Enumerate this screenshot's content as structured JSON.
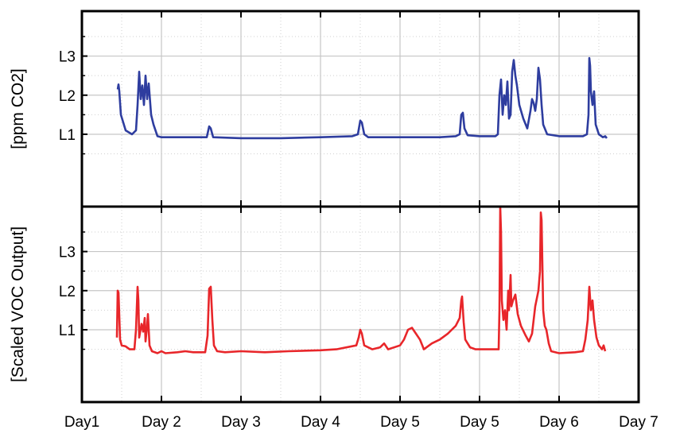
{
  "chart_data": [
    {
      "type": "line",
      "ylabel": "[ppm CO2]",
      "x_ticks": [
        "Day1",
        "Day 2",
        "Day 3",
        "Day 4",
        "Day 5",
        "Day 5",
        "Day 6",
        "Day 7"
      ],
      "y_ticks": [
        "L1",
        "L2",
        "L3"
      ],
      "xlim": [
        0,
        7
      ],
      "ylim": [
        0.53,
        1.53
      ],
      "grid": true,
      "series": [
        {
          "color": "#2e3d9f",
          "points": [
            [
              0.45,
              1.13
            ],
            [
              0.46,
              1.155
            ],
            [
              0.47,
              1.12
            ],
            [
              0.49,
              1.0
            ],
            [
              0.55,
              0.92
            ],
            [
              0.63,
              0.9
            ],
            [
              0.68,
              0.92
            ],
            [
              0.7,
              1.05
            ],
            [
              0.72,
              1.22
            ],
            [
              0.74,
              1.08
            ],
            [
              0.76,
              1.15
            ],
            [
              0.78,
              1.05
            ],
            [
              0.8,
              1.2
            ],
            [
              0.82,
              1.08
            ],
            [
              0.84,
              1.16
            ],
            [
              0.87,
              1.0
            ],
            [
              0.9,
              0.95
            ],
            [
              0.95,
              0.89
            ],
            [
              1.0,
              0.885
            ],
            [
              1.2,
              0.885
            ],
            [
              1.5,
              0.885
            ],
            [
              1.57,
              0.885
            ],
            [
              1.6,
              0.94
            ],
            [
              1.62,
              0.93
            ],
            [
              1.65,
              0.885
            ],
            [
              2.0,
              0.88
            ],
            [
              2.5,
              0.88
            ],
            [
              3.0,
              0.885
            ],
            [
              3.4,
              0.89
            ],
            [
              3.47,
              0.9
            ],
            [
              3.5,
              0.97
            ],
            [
              3.52,
              0.96
            ],
            [
              3.55,
              0.9
            ],
            [
              3.6,
              0.885
            ],
            [
              4.0,
              0.885
            ],
            [
              4.5,
              0.885
            ],
            [
              4.7,
              0.89
            ],
            [
              4.75,
              0.9
            ],
            [
              4.77,
              1.0
            ],
            [
              4.79,
              1.01
            ],
            [
              4.81,
              0.93
            ],
            [
              4.85,
              0.895
            ],
            [
              5.0,
              0.89
            ],
            [
              5.2,
              0.89
            ],
            [
              5.23,
              0.9
            ],
            [
              5.25,
              1.1
            ],
            [
              5.27,
              1.18
            ],
            [
              5.29,
              1.0
            ],
            [
              5.31,
              1.1
            ],
            [
              5.33,
              1.05
            ],
            [
              5.35,
              1.17
            ],
            [
              5.37,
              0.98
            ],
            [
              5.39,
              1.0
            ],
            [
              5.41,
              1.22
            ],
            [
              5.43,
              1.28
            ],
            [
              5.45,
              1.2
            ],
            [
              5.47,
              1.15
            ],
            [
              5.5,
              1.05
            ],
            [
              5.55,
              0.98
            ],
            [
              5.6,
              0.93
            ],
            [
              5.64,
              1.02
            ],
            [
              5.66,
              1.08
            ],
            [
              5.68,
              1.06
            ],
            [
              5.7,
              1.02
            ],
            [
              5.72,
              1.08
            ],
            [
              5.74,
              1.24
            ],
            [
              5.76,
              1.18
            ],
            [
              5.78,
              1.05
            ],
            [
              5.8,
              0.95
            ],
            [
              5.85,
              0.9
            ],
            [
              6.0,
              0.89
            ],
            [
              6.3,
              0.89
            ],
            [
              6.35,
              0.9
            ],
            [
              6.37,
              1.0
            ],
            [
              6.38,
              1.29
            ],
            [
              6.39,
              1.25
            ],
            [
              6.4,
              1.12
            ],
            [
              6.42,
              1.05
            ],
            [
              6.44,
              1.12
            ],
            [
              6.46,
              0.95
            ],
            [
              6.5,
              0.9
            ],
            [
              6.55,
              0.885
            ],
            [
              6.58,
              0.89
            ],
            [
              6.6,
              0.88
            ]
          ]
        }
      ]
    },
    {
      "type": "line",
      "ylabel": "[Scaled VOC Output]",
      "x_ticks": [
        "Day1",
        "Day 2",
        "Day 3",
        "Day 4",
        "Day 5",
        "Day 5",
        "Day 6",
        "Day 7"
      ],
      "y_ticks": [
        "L1",
        "L2",
        "L3"
      ],
      "xlim": [
        0,
        7
      ],
      "ylim": [
        0.53,
        1.53
      ],
      "grid": true,
      "series": [
        {
          "color": "#e8262a",
          "points": [
            [
              0.44,
              0.86
            ],
            [
              0.45,
              1.1
            ],
            [
              0.46,
              1.09
            ],
            [
              0.48,
              0.85
            ],
            [
              0.5,
              0.82
            ],
            [
              0.55,
              0.815
            ],
            [
              0.6,
              0.8
            ],
            [
              0.66,
              0.8
            ],
            [
              0.68,
              0.9
            ],
            [
              0.7,
              1.12
            ],
            [
              0.71,
              1.05
            ],
            [
              0.72,
              0.86
            ],
            [
              0.75,
              0.93
            ],
            [
              0.77,
              0.89
            ],
            [
              0.79,
              0.96
            ],
            [
              0.8,
              0.84
            ],
            [
              0.82,
              0.92
            ],
            [
              0.83,
              0.98
            ],
            [
              0.85,
              0.82
            ],
            [
              0.88,
              0.79
            ],
            [
              0.95,
              0.78
            ],
            [
              1.0,
              0.79
            ],
            [
              1.05,
              0.78
            ],
            [
              1.2,
              0.785
            ],
            [
              1.3,
              0.79
            ],
            [
              1.4,
              0.785
            ],
            [
              1.55,
              0.785
            ],
            [
              1.58,
              0.87
            ],
            [
              1.6,
              1.11
            ],
            [
              1.62,
              1.12
            ],
            [
              1.64,
              0.95
            ],
            [
              1.66,
              0.82
            ],
            [
              1.7,
              0.79
            ],
            [
              1.8,
              0.785
            ],
            [
              2.0,
              0.79
            ],
            [
              2.3,
              0.785
            ],
            [
              2.6,
              0.79
            ],
            [
              3.0,
              0.795
            ],
            [
              3.2,
              0.8
            ],
            [
              3.45,
              0.82
            ],
            [
              3.48,
              0.86
            ],
            [
              3.5,
              0.9
            ],
            [
              3.52,
              0.88
            ],
            [
              3.55,
              0.82
            ],
            [
              3.65,
              0.8
            ],
            [
              3.75,
              0.81
            ],
            [
              3.8,
              0.83
            ],
            [
              3.85,
              0.8
            ],
            [
              4.0,
              0.82
            ],
            [
              4.05,
              0.85
            ],
            [
              4.1,
              0.9
            ],
            [
              4.15,
              0.91
            ],
            [
              4.2,
              0.88
            ],
            [
              4.25,
              0.85
            ],
            [
              4.3,
              0.8
            ],
            [
              4.4,
              0.83
            ],
            [
              4.5,
              0.85
            ],
            [
              4.6,
              0.88
            ],
            [
              4.65,
              0.9
            ],
            [
              4.7,
              0.92
            ],
            [
              4.75,
              0.96
            ],
            [
              4.77,
              1.05
            ],
            [
              4.78,
              1.07
            ],
            [
              4.8,
              0.94
            ],
            [
              4.82,
              0.85
            ],
            [
              4.88,
              0.81
            ],
            [
              4.95,
              0.8
            ],
            [
              5.1,
              0.8
            ],
            [
              5.2,
              0.8
            ],
            [
              5.24,
              0.8
            ],
            [
              5.25,
              1.0
            ],
            [
              5.26,
              1.6
            ],
            [
              5.27,
              1.4
            ],
            [
              5.28,
              1.05
            ],
            [
              5.3,
              0.95
            ],
            [
              5.32,
              1.0
            ],
            [
              5.34,
              0.9
            ],
            [
              5.36,
              1.1
            ],
            [
              5.37,
              1.0
            ],
            [
              5.39,
              1.18
            ],
            [
              5.4,
              1.02
            ],
            [
              5.42,
              1.05
            ],
            [
              5.45,
              1.08
            ],
            [
              5.48,
              0.98
            ],
            [
              5.52,
              0.92
            ],
            [
              5.58,
              0.87
            ],
            [
              5.62,
              0.84
            ],
            [
              5.66,
              0.88
            ],
            [
              5.7,
              1.02
            ],
            [
              5.74,
              1.1
            ],
            [
              5.76,
              1.2
            ],
            [
              5.77,
              1.5
            ],
            [
              5.78,
              1.46
            ],
            [
              5.8,
              1.0
            ],
            [
              5.82,
              0.92
            ],
            [
              5.84,
              0.9
            ],
            [
              5.87,
              0.83
            ],
            [
              5.9,
              0.79
            ],
            [
              6.0,
              0.78
            ],
            [
              6.2,
              0.785
            ],
            [
              6.3,
              0.79
            ],
            [
              6.33,
              0.85
            ],
            [
              6.36,
              0.95
            ],
            [
              6.38,
              1.12
            ],
            [
              6.4,
              1.0
            ],
            [
              6.42,
              1.05
            ],
            [
              6.44,
              0.95
            ],
            [
              6.47,
              0.86
            ],
            [
              6.5,
              0.82
            ],
            [
              6.54,
              0.8
            ],
            [
              6.56,
              0.82
            ],
            [
              6.58,
              0.79
            ]
          ]
        }
      ]
    }
  ]
}
